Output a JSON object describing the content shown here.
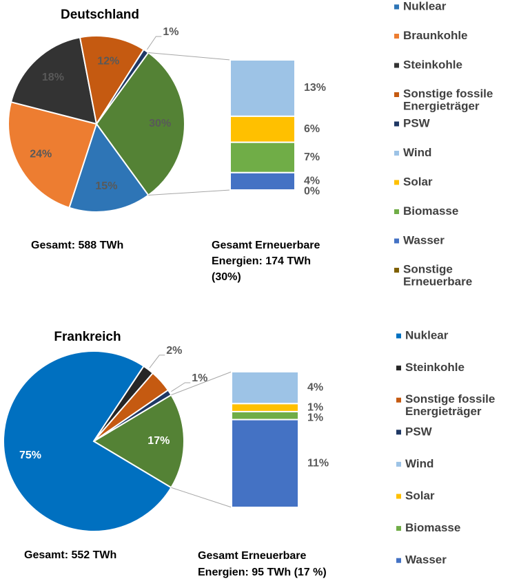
{
  "chart_data": [
    {
      "type": "pie-of-bar",
      "title": "Deutschland",
      "total_label": "Gesamt:  588 TWh",
      "bar_caption": [
        "Gesamt Erneuerbare",
        "Energien: 174 TWh",
        "(30%)"
      ],
      "label_color": "#595959",
      "pie": {
        "categories": [
          "Nuklear",
          "Braunkohle",
          "Steinkohle",
          "Sonstige fossile Energieträger",
          "PSW",
          null
        ],
        "values": [
          15,
          24,
          18,
          12,
          1,
          30
        ],
        "value_labels": [
          "15%",
          "24%",
          "18%",
          "12%",
          "1%",
          "30%"
        ],
        "colors": [
          "#2e75b6",
          "#ed7d31",
          "#333333",
          "#c55a11",
          "#1f3864",
          "#548235"
        ]
      },
      "bar": {
        "categories": [
          "Wind",
          "Solar",
          "Biomasse",
          "Wasser",
          "Sonstige Erneuerbare"
        ],
        "values": [
          13,
          6,
          7,
          4,
          0
        ],
        "value_labels": [
          "13%",
          "6%",
          "7%",
          "4%",
          "0%"
        ],
        "colors": [
          "#9dc3e6",
          "#ffc000",
          "#70ad47",
          "#4472c4",
          "#7f6000"
        ]
      }
    },
    {
      "type": "pie-of-bar",
      "title": "Frankreich",
      "total_label": "Gesamt:  552 TWh",
      "bar_caption": [
        "Gesamt Erneuerbare",
        "Energien: 95 TWh (17 %)"
      ],
      "label_color": "#ffffff",
      "pie": {
        "categories": [
          "Nuklear",
          "Steinkohle",
          "Sonstige fossile Energieträger",
          "PSW",
          null
        ],
        "values": [
          75,
          2,
          4,
          1,
          17
        ],
        "value_labels": [
          "75%",
          "2%",
          null,
          "1%",
          "17%"
        ],
        "colors": [
          "#0070c0",
          "#262626",
          "#c55a11",
          "#1f3864",
          "#548235"
        ]
      },
      "bar": {
        "categories": [
          "Wind",
          "Solar",
          "Biomasse",
          "Wasser"
        ],
        "values": [
          4,
          1,
          1,
          11
        ],
        "value_labels": [
          "4%",
          "1%",
          "1%",
          "11%"
        ],
        "colors": [
          "#9dc3e6",
          "#ffc000",
          "#70ad47",
          "#4472c4"
        ]
      }
    }
  ]
}
